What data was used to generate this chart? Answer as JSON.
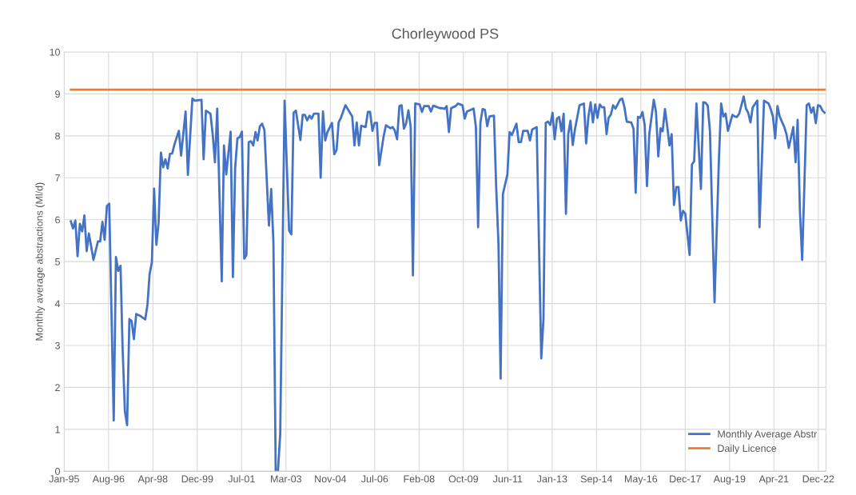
{
  "chart_data": {
    "type": "line",
    "title": "Chorleywood PS",
    "ylabel": "Monthly average abstractions (Ml/d)",
    "xlim": [
      "1995-01-01",
      "2023-03-20"
    ],
    "xticks": [
      {
        "value": "1995-01-01",
        "label": "Jan-95"
      },
      {
        "value": "1996-08-23",
        "label": "Aug-96"
      },
      {
        "value": "1998-04-15",
        "label": "Apr-98"
      },
      {
        "value": "1999-12-06",
        "label": "Dec-99"
      },
      {
        "value": "2001-07-28",
        "label": "Jul-01"
      },
      {
        "value": "2003-03-20",
        "label": "Mar-03"
      },
      {
        "value": "2004-11-09",
        "label": "Nov-04"
      },
      {
        "value": "2006-07-02",
        "label": "Jul-06"
      },
      {
        "value": "2008-02-22",
        "label": "Feb-08"
      },
      {
        "value": "2009-10-14",
        "label": "Oct-09"
      },
      {
        "value": "2011-06-06",
        "label": "Jun-11"
      },
      {
        "value": "2013-01-26",
        "label": "Jan-13"
      },
      {
        "value": "2014-09-18",
        "label": "Sep-14"
      },
      {
        "value": "2016-05-10",
        "label": "May-16"
      },
      {
        "value": "2017-12-31",
        "label": "Dec-17"
      },
      {
        "value": "2019-08-23",
        "label": "Aug-19"
      },
      {
        "value": "2021-04-14",
        "label": "Apr-21"
      },
      {
        "value": "2022-12-05",
        "label": "Dec-22"
      }
    ],
    "ylim": [
      0,
      10
    ],
    "yticks": [
      0,
      1,
      2,
      3,
      4,
      5,
      6,
      7,
      8,
      9,
      10
    ],
    "grid": true,
    "legend": "bottom right",
    "line_style": "solid",
    "marker": "none",
    "series": [
      {
        "name": "Monthly Average Abstr",
        "color": "#4472c4",
        "x": [
          "1995-04",
          "1995-05",
          "1995-06",
          "1995-07",
          "1995-08",
          "1995-09",
          "1995-10",
          "1995-11",
          "1995-12",
          "1996-02",
          "1996-04",
          "1996-05",
          "1996-06",
          "1996-07",
          "1996-08",
          "1996-09",
          "1996-11",
          "1996-12",
          "1997-01",
          "1997-02",
          "1997-03",
          "1997-04",
          "1997-05",
          "1997-06",
          "1997-07",
          "1997-08",
          "1997-09",
          "1997-11",
          "1998-01",
          "1998-02",
          "1998-03",
          "1998-04",
          "1998-05",
          "1998-06",
          "1998-07",
          "1998-08",
          "1998-09",
          "1998-10",
          "1998-11",
          "1998-12",
          "1999-01",
          "1999-02",
          "1999-04",
          "1999-05",
          "1999-07",
          "1999-08",
          "1999-10",
          "1999-11",
          "2000-02",
          "2000-03",
          "2000-04",
          "2000-06",
          "2000-07",
          "2000-08",
          "2000-09",
          "2000-11",
          "2000-12",
          "2001-01",
          "2001-03",
          "2001-04",
          "2001-05",
          "2001-06",
          "2001-07",
          "2001-08",
          "2001-09",
          "2001-10",
          "2001-11",
          "2001-12",
          "2002-01",
          "2002-02",
          "2002-03",
          "2002-04",
          "2002-05",
          "2002-06",
          "2002-08",
          "2002-09",
          "2002-10",
          "2002-11",
          "2002-12",
          "2003-01",
          "2003-03",
          "2003-05",
          "2003-06",
          "2003-07",
          "2003-08",
          "2003-10",
          "2003-11",
          "2003-12",
          "2004-01",
          "2004-02",
          "2004-03",
          "2004-04",
          "2004-06",
          "2004-07",
          "2004-08",
          "2004-09",
          "2004-10",
          "2004-12",
          "2005-01",
          "2005-02",
          "2005-03",
          "2005-04",
          "2005-06",
          "2005-09",
          "2005-10",
          "2005-11",
          "2005-12",
          "2006-01",
          "2006-03",
          "2006-04",
          "2006-05",
          "2006-06",
          "2006-07",
          "2006-08",
          "2006-09",
          "2006-11",
          "2006-12",
          "2007-02",
          "2007-03",
          "2007-04",
          "2007-05",
          "2007-06",
          "2007-07",
          "2007-08",
          "2007-09",
          "2007-10",
          "2007-11",
          "2007-12",
          "2008-01",
          "2008-03",
          "2008-04",
          "2008-05",
          "2008-07",
          "2008-08",
          "2008-09",
          "2008-12",
          "2009-01",
          "2009-02",
          "2009-03",
          "2009-04",
          "2009-05",
          "2009-07",
          "2009-08",
          "2009-10",
          "2009-11",
          "2009-12",
          "2010-03",
          "2010-04",
          "2010-05",
          "2010-06",
          "2010-07",
          "2010-08",
          "2010-09",
          "2010-10",
          "2010-12",
          "2011-01",
          "2011-02",
          "2011-03",
          "2011-04",
          "2011-06",
          "2011-07",
          "2011-08",
          "2011-10",
          "2011-11",
          "2011-12",
          "2012-01",
          "2012-03",
          "2012-04",
          "2012-05",
          "2012-07",
          "2012-09",
          "2012-10",
          "2012-11",
          "2012-12",
          "2013-01",
          "2013-02",
          "2013-03",
          "2013-04",
          "2013-05",
          "2013-06",
          "2013-07",
          "2013-08",
          "2013-09",
          "2013-10",
          "2013-11",
          "2013-12",
          "2014-02",
          "2014-04",
          "2014-05",
          "2014-06",
          "2014-07",
          "2014-08",
          "2014-09",
          "2014-10",
          "2014-11",
          "2014-12",
          "2015-01",
          "2015-02",
          "2015-03",
          "2015-04",
          "2015-05",
          "2015-06",
          "2015-08",
          "2015-09",
          "2015-10",
          "2015-11",
          "2016-01",
          "2016-02",
          "2016-03",
          "2016-04",
          "2016-05",
          "2016-06",
          "2016-07",
          "2016-08",
          "2016-09",
          "2016-11",
          "2016-12",
          "2017-01",
          "2017-02",
          "2017-03",
          "2017-04",
          "2017-05",
          "2017-06",
          "2017-07",
          "2017-08",
          "2017-09",
          "2017-10",
          "2017-11",
          "2017-12",
          "2018-01",
          "2018-03",
          "2018-04",
          "2018-05",
          "2018-06",
          "2018-08",
          "2018-09",
          "2018-10",
          "2018-11",
          "2018-12",
          "2019-02",
          "2019-04",
          "2019-05",
          "2019-06",
          "2019-07",
          "2019-08",
          "2019-10",
          "2019-11",
          "2019-12",
          "2020-01",
          "2020-03",
          "2020-04",
          "2020-05",
          "2020-06",
          "2020-07",
          "2020-09",
          "2020-10",
          "2020-12",
          "2021-02",
          "2021-03",
          "2021-04",
          "2021-05",
          "2021-06",
          "2021-07",
          "2021-09",
          "2021-10",
          "2021-11",
          "2021-12",
          "2022-01",
          "2022-02",
          "2022-03",
          "2022-04",
          "2022-05",
          "2022-06",
          "2022-07",
          "2022-08",
          "2022-09",
          "2022-10",
          "2022-11",
          "2022-12",
          "2023-01",
          "2023-02",
          "2023-03"
        ],
        "values": [
          5.96,
          5.79,
          5.98,
          5.13,
          5.9,
          5.72,
          6.1,
          5.25,
          5.67,
          5.04,
          5.48,
          5.48,
          5.95,
          5.52,
          6.33,
          6.38,
          1.21,
          5.11,
          4.78,
          4.9,
          2.93,
          1.43,
          1.1,
          3.63,
          3.58,
          3.15,
          3.75,
          3.7,
          3.62,
          3.98,
          4.7,
          4.99,
          6.74,
          5.4,
          5.93,
          7.6,
          7.25,
          7.44,
          7.22,
          7.57,
          7.58,
          7.8,
          8.12,
          7.53,
          8.58,
          7.07,
          8.89,
          8.84,
          8.86,
          7.44,
          8.6,
          8.53,
          8.05,
          7.37,
          8.65,
          4.53,
          7.77,
          7.08,
          8.1,
          4.63,
          7.22,
          7.94,
          7.97,
          8.1,
          5.07,
          5.16,
          7.85,
          7.87,
          7.77,
          8.09,
          7.89,
          8.23,
          8.29,
          8.14,
          5.86,
          6.73,
          5.45,
          0,
          0,
          0.89,
          8.84,
          5.74,
          5.65,
          8.55,
          8.6,
          7.9,
          8.5,
          8.5,
          8.37,
          8.48,
          8.41,
          8.53,
          8.53,
          7.0,
          8.58,
          7.89,
          8.09,
          8.31,
          7.56,
          7.66,
          8.32,
          8.43,
          8.73,
          8.46,
          7.77,
          8.32,
          7.77,
          8.24,
          8.21,
          8.57,
          8.57,
          8.12,
          8.31,
          8.31,
          7.3,
          8.0,
          8.25,
          8.18,
          8.21,
          8.12,
          7.92,
          8.71,
          8.73,
          8.17,
          8.3,
          8.61,
          8.21,
          4.67,
          8.77,
          8.75,
          8.57,
          8.71,
          8.71,
          8.58,
          8.72,
          8.66,
          8.66,
          8.64,
          8.71,
          8.09,
          8.66,
          8.71,
          8.77,
          8.73,
          8.41,
          8.58,
          8.65,
          8.21,
          5.82,
          8.32,
          8.64,
          8.62,
          8.23,
          8.46,
          8.48,
          6.74,
          5.38,
          2.21,
          6.61,
          7.08,
          8.09,
          8.02,
          8.29,
          7.85,
          7.85,
          8.12,
          8.12,
          7.89,
          8.15,
          8.21,
          2.69,
          3.64,
          8.31,
          8.34,
          8.26,
          8.55,
          7.92,
          8.41,
          8.45,
          8.11,
          8.53,
          6.14,
          8.04,
          8.36,
          7.78,
          8.16,
          8.73,
          8.77,
          7.82,
          8.46,
          8.8,
          8.32,
          8.75,
          8.43,
          8.75,
          8.68,
          8.68,
          8.04,
          8.43,
          8.51,
          8.73,
          8.65,
          8.86,
          8.89,
          8.68,
          8.34,
          8.32,
          8.17,
          6.64,
          8.45,
          8.43,
          8.57,
          8.26,
          6.8,
          8.04,
          8.86,
          8.57,
          7.51,
          8.18,
          8.11,
          8.64,
          8.24,
          7.77,
          8.04,
          6.35,
          6.78,
          6.78,
          5.98,
          6.21,
          6.14,
          5.16,
          7.32,
          7.39,
          8.77,
          6.73,
          8.8,
          8.79,
          8.72,
          8.11,
          4.03,
          7.44,
          8.77,
          8.46,
          8.53,
          8.12,
          8.5,
          8.46,
          8.45,
          8.53,
          8.94,
          8.65,
          8.55,
          8.32,
          8.68,
          8.84,
          5.82,
          8.84,
          8.77,
          8.64,
          8.46,
          7.94,
          8.71,
          8.46,
          8.21,
          8.04,
          7.71,
          7.96,
          8.21,
          7.37,
          8.38,
          6.2,
          5.04,
          6.88,
          8.73,
          8.77,
          8.55,
          8.68,
          8.3,
          8.73,
          8.71,
          8.6,
          8.55
        ]
      },
      {
        "name": "Daily Licence",
        "color": "#ed7d31",
        "x": [
          "1995-04",
          "2023-03"
        ],
        "values": [
          9.1,
          9.1
        ]
      }
    ]
  }
}
